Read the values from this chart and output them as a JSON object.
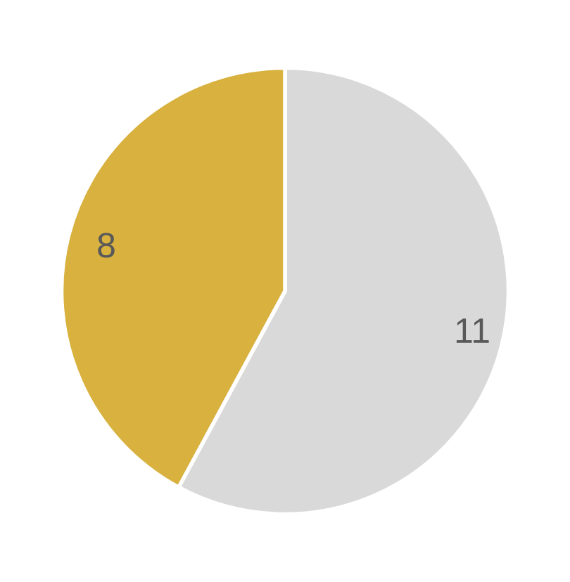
{
  "chart_data": {
    "type": "pie",
    "categories": [
      null,
      null
    ],
    "values": [
      11,
      8
    ],
    "colors": [
      "#d9d9d9",
      "#d8b13f"
    ],
    "data_labels": true
  }
}
